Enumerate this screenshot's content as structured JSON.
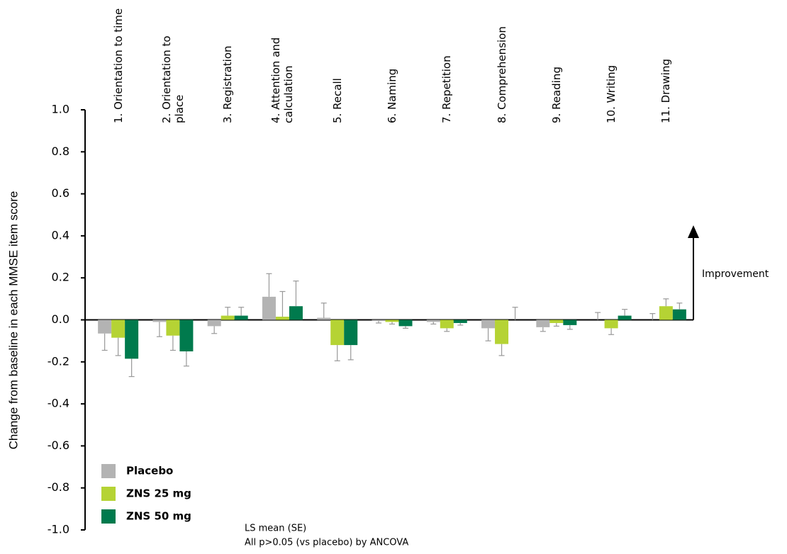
{
  "chart_data": {
    "type": "bar",
    "y_label": "Change from baseline in each MMSE item score",
    "categories": [
      "1.  Orientation to time",
      "2.  Orientation to place",
      "3.  Registration",
      "4.  Attention and calculation",
      "5.  Recall",
      "6.  Naming",
      "7.  Repetition",
      "8.  Comprehension",
      "9.  Reading",
      "10.  Writing",
      "11.  Drawing"
    ],
    "series": [
      {
        "name": "Placebo",
        "color": "#b3b3b3",
        "values": [
          -0.065,
          -0.01,
          -0.03,
          0.11,
          0.01,
          -0.005,
          -0.01,
          -0.04,
          -0.035,
          0.0,
          0.0
        ],
        "errors": [
          0.08,
          0.07,
          0.035,
          0.11,
          0.07,
          0.01,
          0.01,
          0.06,
          0.02,
          0.035,
          0.03
        ]
      },
      {
        "name": "ZNS 25 mg",
        "color": "#b5d334",
        "values": [
          -0.085,
          -0.075,
          0.02,
          0.015,
          -0.12,
          -0.01,
          -0.04,
          -0.115,
          -0.015,
          -0.04,
          0.065
        ],
        "errors": [
          0.085,
          0.07,
          0.04,
          0.12,
          0.075,
          0.01,
          0.015,
          0.055,
          0.015,
          0.03,
          0.035
        ]
      },
      {
        "name": "ZNS 50 mg",
        "color": "#007a4d",
        "values": [
          -0.185,
          -0.15,
          0.02,
          0.065,
          -0.12,
          -0.03,
          -0.015,
          0.0,
          -0.025,
          0.02,
          0.05
        ],
        "errors": [
          0.085,
          0.07,
          0.04,
          0.12,
          0.07,
          0.01,
          0.01,
          0.06,
          0.02,
          0.03,
          0.03
        ]
      }
    ],
    "ylim": [
      -1.0,
      1.0
    ],
    "yticks": [
      {
        "value": -1.0,
        "label": "-1.0"
      },
      -0.8,
      -0.6,
      -0.4,
      -0.2,
      {
        "value": 0.0,
        "label": "0.0"
      },
      0.2,
      0.4,
      0.6,
      0.8,
      {
        "value": 1.0,
        "label": "1.0"
      }
    ],
    "error_color": "#999999",
    "legend": "bottom-left",
    "annotation": "Improvement",
    "footnotes": [
      "LS mean (SE)",
      "All p>0.05 (vs placebo) by ANCOVA"
    ]
  }
}
